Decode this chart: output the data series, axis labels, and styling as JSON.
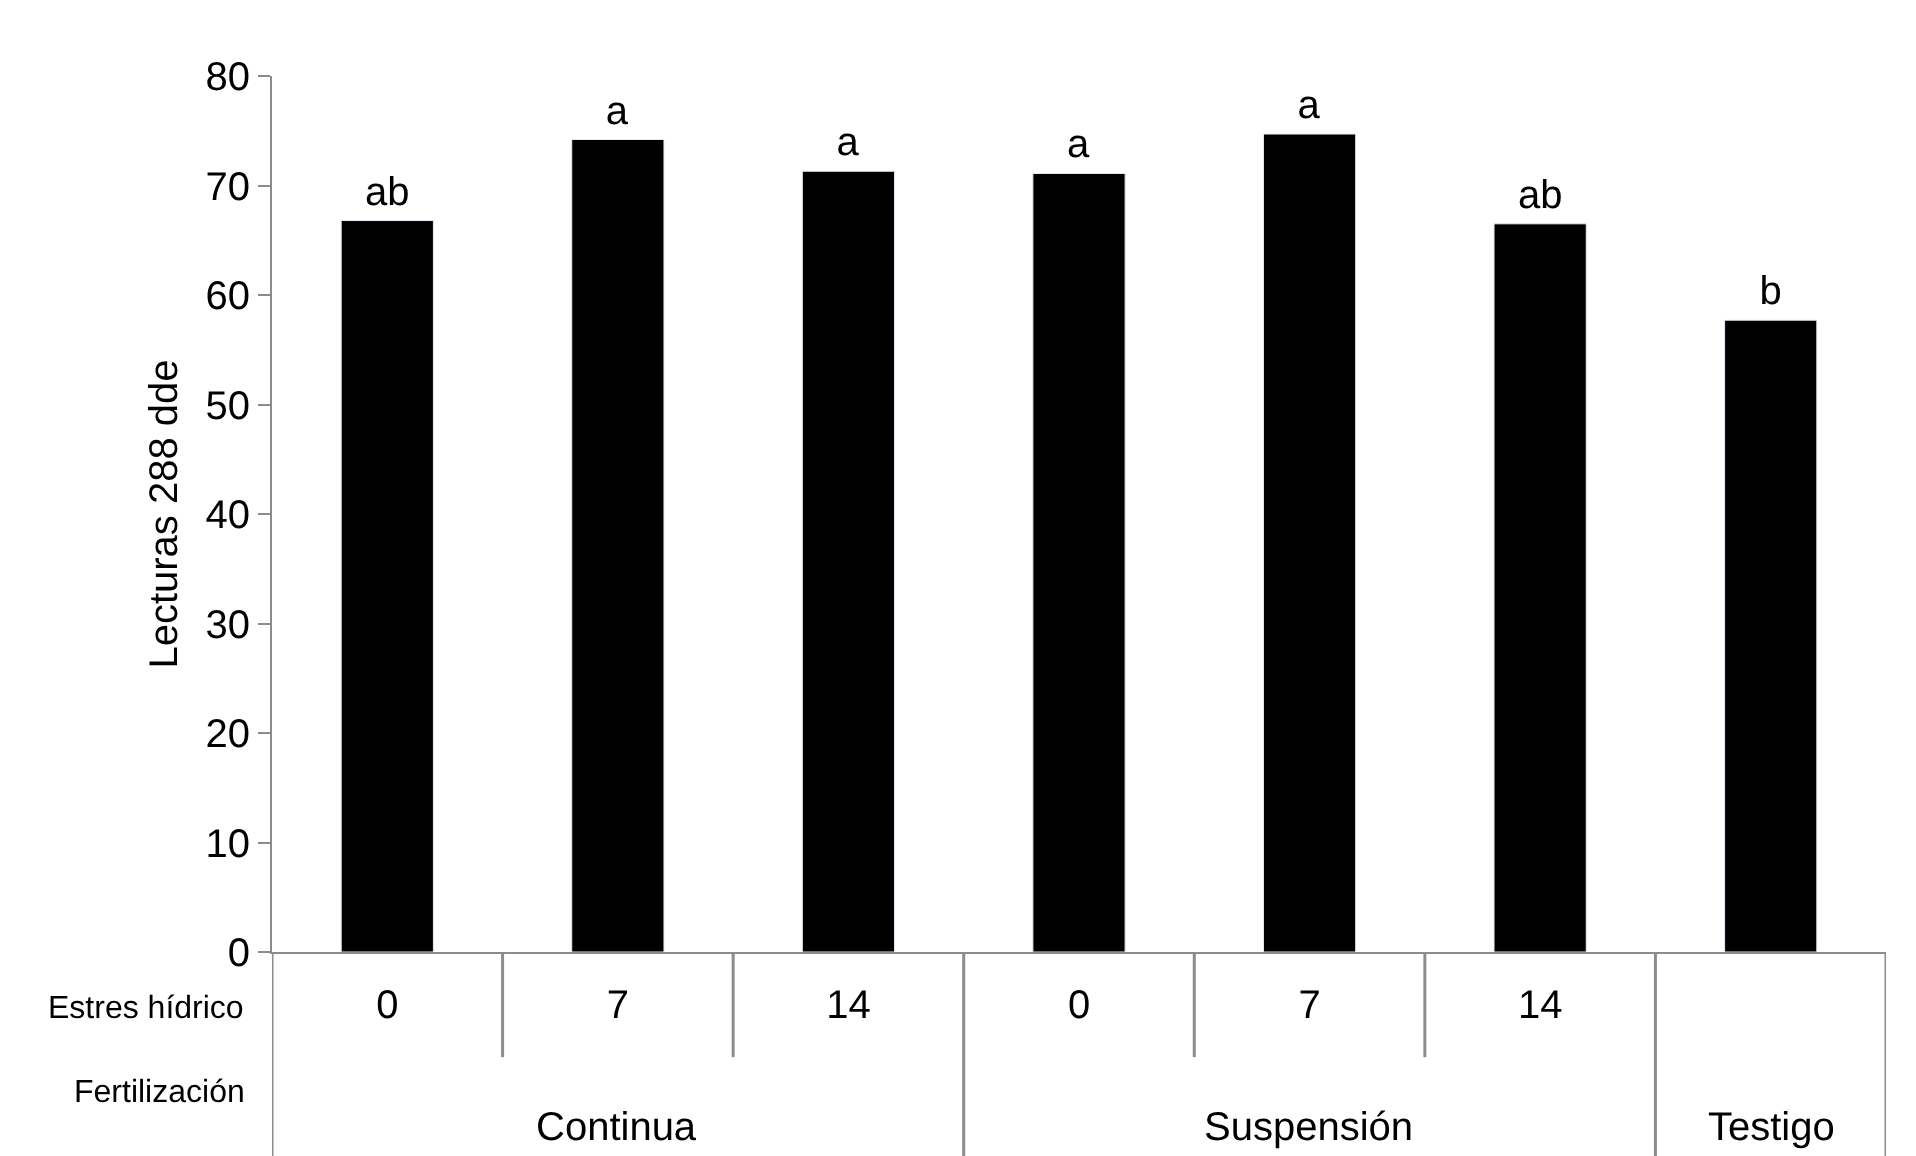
{
  "chart_data": {
    "type": "bar",
    "ylabel": "Lecturas 288 dde",
    "categories": [
      "0",
      "7",
      "14",
      "0",
      "7",
      "14",
      null
    ],
    "values": [
      66.8,
      74.2,
      71.3,
      71.1,
      74.7,
      66.5,
      57.7
    ],
    "value_labels": [
      "ab",
      "a",
      "a",
      "a",
      "a",
      "ab",
      "b"
    ],
    "color": "#000000",
    "ylim": [
      0,
      80
    ],
    "yticks": [
      0,
      10,
      20,
      30,
      40,
      50,
      60,
      70,
      80
    ],
    "annotations": [
      "Estres hídrico",
      "Fertilización",
      "Continua",
      "Suspensión",
      "Testigo"
    ],
    "legend": false
  }
}
